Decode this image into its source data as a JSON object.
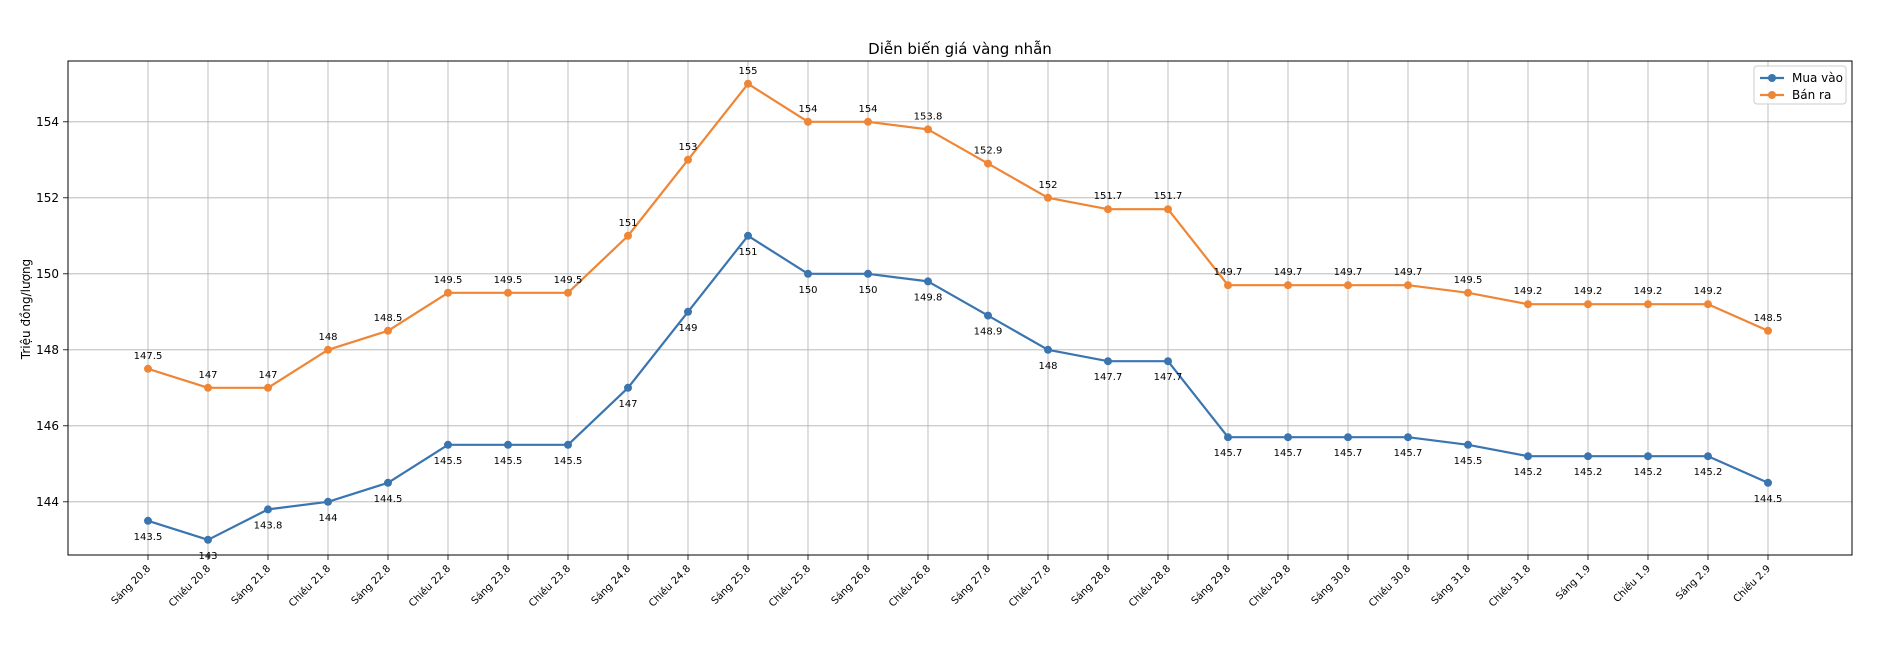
{
  "chart_data": {
    "type": "line",
    "title": "Diễn biến giá vàng nhẫn",
    "xlabel": "",
    "ylabel": "Triệu đồng/lượng",
    "categories": [
      "Sáng 20.8",
      "Chiều 20.8",
      "Sáng 21.8",
      "Chiều 21.8",
      "Sáng 22.8",
      "Chiều 22.8",
      "Sáng 23.8",
      "Chiều 23.8",
      "Sáng 24.8",
      "Chiều 24.8",
      "Sáng 25.8",
      "Chiều 25.8",
      "Sáng 26.8",
      "Chiều 26.8",
      "Sáng 27.8",
      "Chiều 27.8",
      "Sáng 28.8",
      "Chiều 28.8",
      "Sáng 29.8",
      "Chiều 29.8",
      "Sáng 30.8",
      "Chiều 30.8",
      "Sáng 31.8",
      "Chiều 31.8",
      "Sáng 1.9",
      "Chiều 1.9",
      "Sáng 2.9",
      "Chiều 2.9"
    ],
    "series": [
      {
        "name": "Mua vào",
        "color": "#3a75b0",
        "values": [
          143.5,
          143,
          143.8,
          144,
          144.5,
          145.5,
          145.5,
          145.5,
          147,
          149,
          151,
          150,
          150,
          149.8,
          148.9,
          148,
          147.7,
          147.7,
          145.7,
          145.7,
          145.7,
          145.7,
          145.5,
          145.2,
          145.2,
          145.2,
          145.2,
          144.5
        ]
      },
      {
        "name": "Bán ra",
        "color": "#ef8636",
        "values": [
          147.5,
          147,
          147,
          148,
          148.5,
          149.5,
          149.5,
          149.5,
          151,
          153,
          155,
          154,
          154,
          153.8,
          152.9,
          152,
          151.7,
          151.7,
          149.7,
          149.7,
          149.7,
          149.7,
          149.5,
          149.2,
          149.2,
          149.2,
          149.2,
          148.5
        ]
      }
    ],
    "ylim": [
      142.6,
      155.6
    ],
    "yticks": [
      144,
      146,
      148,
      150,
      152,
      154
    ],
    "grid": true,
    "legend": "top-right"
  }
}
